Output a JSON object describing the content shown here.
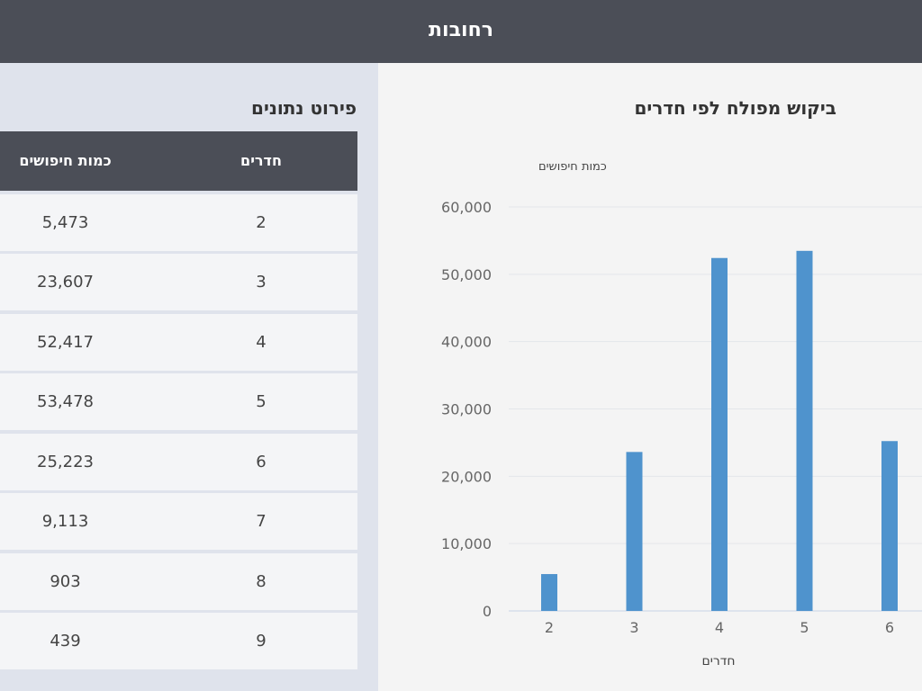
{
  "header": {
    "title": "רחובות"
  },
  "table": {
    "title": "פירוט נתונים",
    "columns": {
      "rooms": "חדרים",
      "searches": "כמות חיפושים"
    },
    "rows": [
      {
        "rooms": "2",
        "searches": "5,473"
      },
      {
        "rooms": "3",
        "searches": "23,607"
      },
      {
        "rooms": "4",
        "searches": "52,417"
      },
      {
        "rooms": "5",
        "searches": "53,478"
      },
      {
        "rooms": "6",
        "searches": "25,223"
      },
      {
        "rooms": "7",
        "searches": "9,113"
      },
      {
        "rooms": "8",
        "searches": "903"
      },
      {
        "rooms": "9",
        "searches": "439"
      }
    ]
  },
  "chart": {
    "title": "ביקוש מפולח לפי חדרים"
  },
  "chart_data": {
    "type": "bar",
    "title": "ביקוש מפולח לפי חדרים",
    "xlabel": "חדרים",
    "ylabel": "כמות חיפושים",
    "categories": [
      "2",
      "3",
      "4",
      "5",
      "6"
    ],
    "values": [
      5473,
      23607,
      52417,
      53478,
      25223
    ],
    "ylim": [
      0,
      60000
    ],
    "yticks": [
      "0",
      "10,000",
      "20,000",
      "30,000",
      "40,000",
      "50,000",
      "60,000"
    ],
    "grid": true,
    "bar_color": "#4f93cd"
  },
  "colors": {
    "header_bg": "#4b4e57",
    "panel_bg": "#dfe3ec",
    "chart_bg": "#f4f4f4",
    "accent": "#4f93cd"
  }
}
